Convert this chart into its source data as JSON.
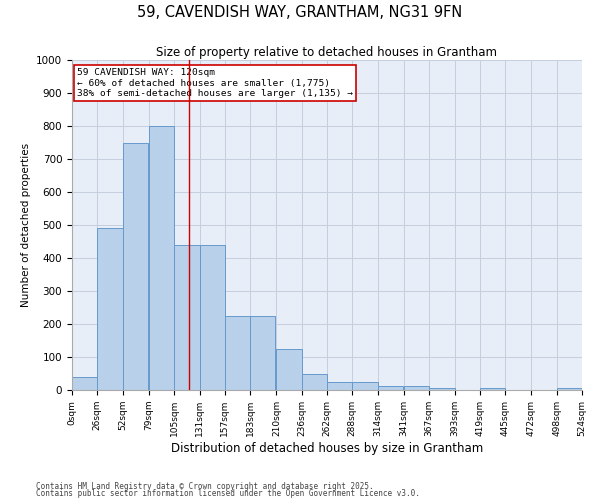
{
  "title": "59, CAVENDISH WAY, GRANTHAM, NG31 9FN",
  "subtitle": "Size of property relative to detached houses in Grantham",
  "xlabel": "Distribution of detached houses by size in Grantham",
  "ylabel": "Number of detached properties",
  "annotation_line1": "59 CAVENDISH WAY: 120sqm",
  "annotation_line2": "← 60% of detached houses are smaller (1,775)",
  "annotation_line3": "38% of semi-detached houses are larger (1,135) →",
  "property_size_sqm": 120,
  "bins": [
    0,
    26,
    52,
    79,
    105,
    131,
    157,
    183,
    210,
    236,
    262,
    288,
    314,
    341,
    367,
    393,
    419,
    445,
    472,
    498,
    524
  ],
  "bin_labels": [
    "0sqm",
    "26sqm",
    "52sqm",
    "79sqm",
    "105sqm",
    "131sqm",
    "157sqm",
    "183sqm",
    "210sqm",
    "236sqm",
    "262sqm",
    "288sqm",
    "314sqm",
    "341sqm",
    "367sqm",
    "393sqm",
    "419sqm",
    "445sqm",
    "472sqm",
    "498sqm",
    "524sqm"
  ],
  "values": [
    40,
    490,
    750,
    800,
    440,
    440,
    225,
    225,
    125,
    50,
    25,
    25,
    12,
    12,
    5,
    0,
    5,
    0,
    0,
    5
  ],
  "bar_color": "#b8d0ea",
  "bar_edge_color": "#6699cc",
  "vline_color": "#cc0000",
  "vline_x": 120,
  "annotation_box_color": "#cc0000",
  "background_color": "#e8eef8",
  "grid_color": "#c5cfe0",
  "ylim": [
    0,
    1000
  ],
  "yticks": [
    0,
    100,
    200,
    300,
    400,
    500,
    600,
    700,
    800,
    900,
    1000
  ],
  "footer1": "Contains HM Land Registry data © Crown copyright and database right 2025.",
  "footer2": "Contains public sector information licensed under the Open Government Licence v3.0."
}
